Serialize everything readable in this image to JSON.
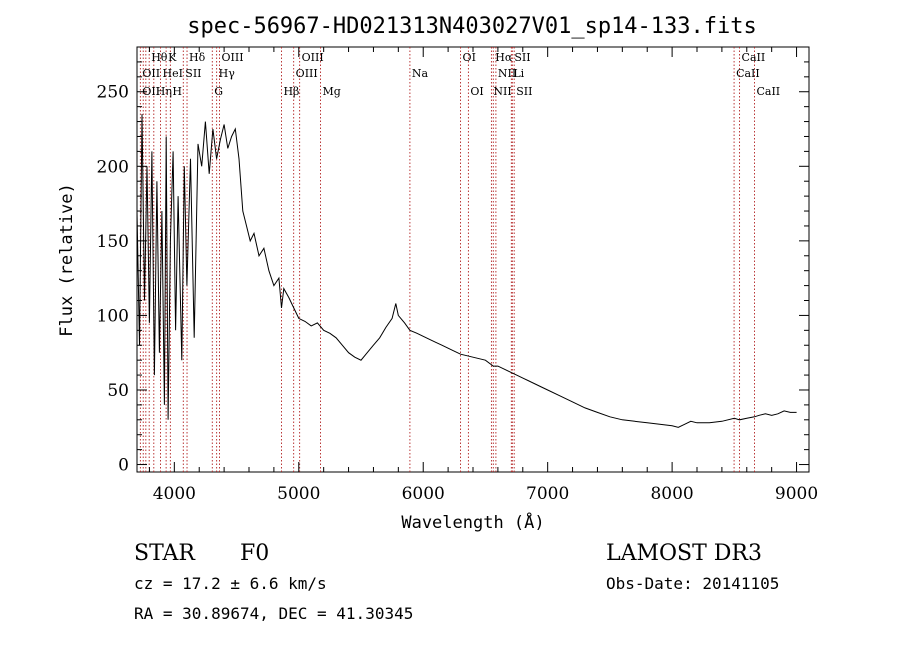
{
  "chart_data": {
    "type": "line",
    "title": "spec-56967-HD021313N403027V01_sp14-133.fits",
    "xlabel": "Wavelength (Å)",
    "ylabel": "Flux (relative)",
    "xlim": [
      3700,
      9100
    ],
    "ylim": [
      -5,
      280
    ],
    "xticks": [
      4000,
      5000,
      6000,
      7000,
      8000,
      9000
    ],
    "yticks": [
      0,
      50,
      100,
      150,
      200,
      250
    ],
    "grid": false,
    "series": [
      {
        "name": "flux",
        "x": [
          3700,
          3720,
          3740,
          3760,
          3780,
          3800,
          3820,
          3840,
          3860,
          3880,
          3900,
          3920,
          3935,
          3950,
          3968,
          3990,
          4010,
          4030,
          4060,
          4080,
          4101,
          4130,
          4160,
          4190,
          4220,
          4250,
          4280,
          4310,
          4340,
          4370,
          4400,
          4430,
          4460,
          4490,
          4520,
          4550,
          4580,
          4610,
          4640,
          4680,
          4720,
          4760,
          4800,
          4840,
          4861,
          4880,
          4920,
          4960,
          5000,
          5050,
          5100,
          5150,
          5200,
          5250,
          5300,
          5350,
          5400,
          5450,
          5500,
          5550,
          5600,
          5650,
          5700,
          5750,
          5780,
          5800,
          5850,
          5893,
          5950,
          6000,
          6050,
          6100,
          6150,
          6200,
          6250,
          6300,
          6350,
          6400,
          6450,
          6500,
          6563,
          6600,
          6650,
          6700,
          6750,
          6800,
          6850,
          6900,
          6950,
          7000,
          7100,
          7200,
          7300,
          7400,
          7500,
          7600,
          7700,
          7800,
          7900,
          8000,
          8050,
          8100,
          8150,
          8200,
          8300,
          8400,
          8500,
          8542,
          8600,
          8662,
          8700,
          8750,
          8800,
          8850,
          8900,
          8950,
          9000
        ],
        "values": [
          170,
          80,
          235,
          110,
          200,
          95,
          210,
          60,
          190,
          75,
          170,
          40,
          220,
          30,
          150,
          210,
          90,
          180,
          70,
          200,
          120,
          205,
          85,
          215,
          200,
          230,
          195,
          225,
          205,
          218,
          228,
          212,
          220,
          225,
          205,
          170,
          160,
          150,
          155,
          140,
          145,
          130,
          120,
          125,
          105,
          118,
          112,
          105,
          98,
          96,
          93,
          95,
          90,
          88,
          85,
          80,
          75,
          72,
          70,
          75,
          80,
          85,
          92,
          98,
          108,
          100,
          95,
          90,
          88,
          86,
          84,
          82,
          80,
          78,
          76,
          74,
          73,
          72,
          71,
          70,
          66,
          66,
          64,
          62,
          60,
          58,
          56,
          54,
          52,
          50,
          46,
          42,
          38,
          35,
          32,
          30,
          29,
          28,
          27,
          26,
          25,
          27,
          29,
          28,
          28,
          29,
          31,
          30,
          31,
          32,
          33,
          34,
          33,
          34,
          36,
          35,
          35
        ]
      }
    ],
    "lines": {
      "row1": [
        {
          "label": "Hθ",
          "wl": 3798
        },
        {
          "label": "K",
          "wl": 3934
        },
        {
          "label": "Hδ",
          "wl": 4102
        },
        {
          "label": "OIII",
          "wl": 4363
        },
        {
          "label": "OIII",
          "wl": 5007
        },
        {
          "label": "OI",
          "wl": 6300
        },
        {
          "label": "Hα",
          "wl": 6563
        },
        {
          "label": "SII",
          "wl": 6716
        },
        {
          "label": "CaII",
          "wl": 8542
        }
      ],
      "row2": [
        {
          "label": "OII",
          "wl": 3727
        },
        {
          "label": "HeI",
          "wl": 3889
        },
        {
          "label": "SII",
          "wl": 4072
        },
        {
          "label": "Hγ",
          "wl": 4340
        },
        {
          "label": "OIII",
          "wl": 4959
        },
        {
          "label": "Na",
          "wl": 5893
        },
        {
          "label": "NII",
          "wl": 6584
        },
        {
          "label": "Li",
          "wl": 6708
        },
        {
          "label": "CaII",
          "wl": 8498
        }
      ],
      "row3": [
        {
          "label": "OII",
          "wl": 3727
        },
        {
          "label": "Hη",
          "wl": 3835
        },
        {
          "label": "H",
          "wl": 3968
        },
        {
          "label": "G",
          "wl": 4305
        },
        {
          "label": "Hβ",
          "wl": 4861
        },
        {
          "label": "Mg",
          "wl": 5175
        },
        {
          "label": "OI",
          "wl": 6363
        },
        {
          "label": "NII",
          "wl": 6548
        },
        {
          "label": "SII",
          "wl": 6731
        },
        {
          "label": "CaII",
          "wl": 8662
        }
      ]
    },
    "marker_wavelengths": [
      3727,
      3750,
      3771,
      3798,
      3835,
      3889,
      3934,
      3968,
      4072,
      4102,
      4305,
      4340,
      4363,
      4861,
      4959,
      5007,
      5175,
      5893,
      6300,
      6363,
      6548,
      6563,
      6584,
      6708,
      6716,
      6731,
      8498,
      8542,
      8662
    ]
  },
  "info": {
    "object_class": "STAR",
    "subclass": "F0",
    "survey": "LAMOST DR3",
    "redshift": "cz =  17.2 ± 6.6 km/s",
    "obs_date": "Obs-Date: 20141105",
    "coords": "RA =  30.89674, DEC =  41.30345"
  }
}
